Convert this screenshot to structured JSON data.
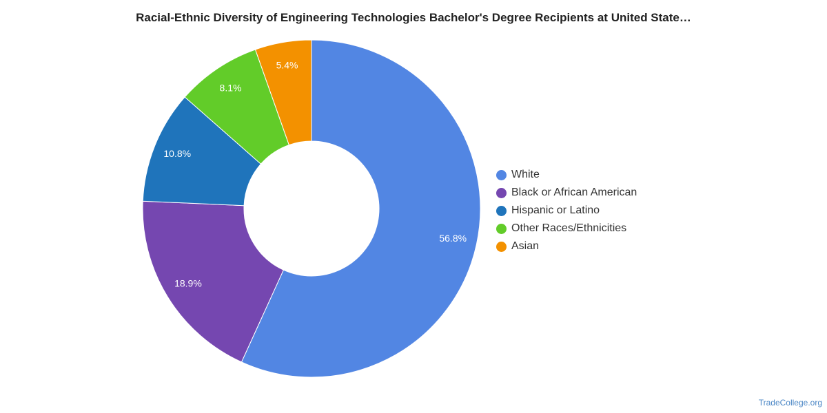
{
  "chart_data": {
    "type": "pie",
    "title": "Racial-Ethnic Diversity of Engineering Technologies Bachelor's Degree Recipients at United State…",
    "donut": true,
    "legend_position": "right",
    "slices": [
      {
        "label": "White",
        "value": 56.8,
        "display": "56.8%",
        "color": "#5286e3"
      },
      {
        "label": "Black or African American",
        "value": 18.9,
        "display": "18.9%",
        "color": "#7547b0"
      },
      {
        "label": "Hispanic or Latino",
        "value": 10.8,
        "display": "10.8%",
        "color": "#1f74bb"
      },
      {
        "label": "Other Races/Ethnicities",
        "value": 8.1,
        "display": "8.1%",
        "color": "#62cc29"
      },
      {
        "label": "Asian",
        "value": 5.4,
        "display": "5.4%",
        "color": "#f39100"
      }
    ]
  },
  "footer": {
    "credit": "TradeCollege.org"
  }
}
